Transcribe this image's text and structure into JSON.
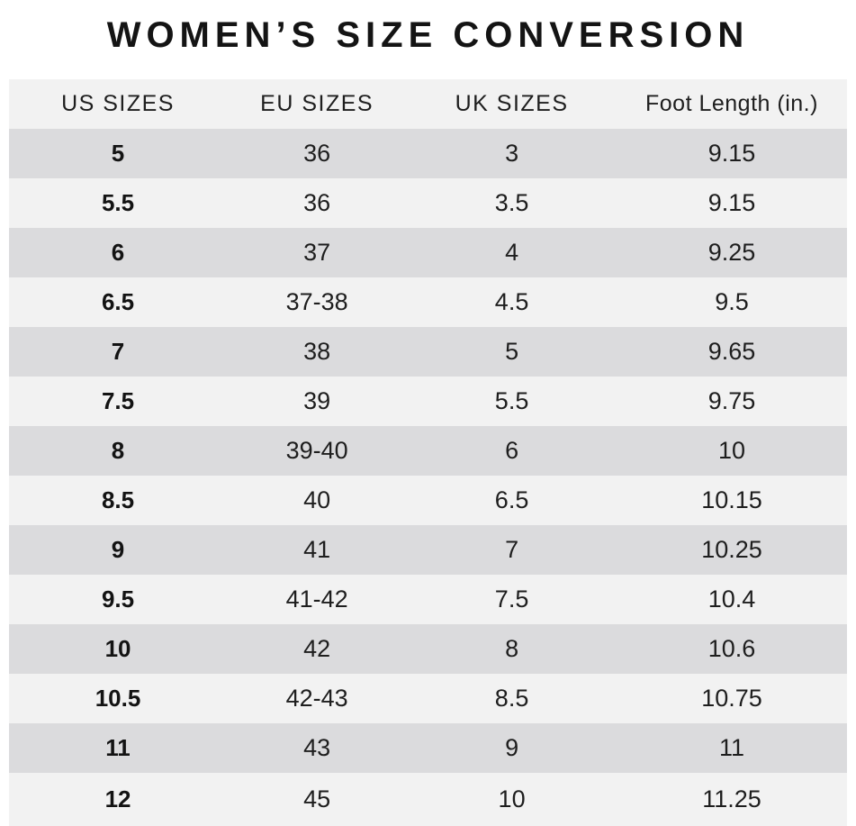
{
  "chart_data": {
    "type": "table",
    "title": "WOMEN’S SIZE CONVERSION",
    "columns": [
      "US SIZES",
      "EU SIZES",
      "UK SIZES",
      "Foot Length (in.)"
    ],
    "rows": [
      [
        "5",
        "36",
        "3",
        "9.15"
      ],
      [
        "5.5",
        "36",
        "3.5",
        "9.15"
      ],
      [
        "6",
        "37",
        "4",
        "9.25"
      ],
      [
        "6.5",
        "37-38",
        "4.5",
        "9.5"
      ],
      [
        "7",
        "38",
        "5",
        "9.65"
      ],
      [
        "7.5",
        "39",
        "5.5",
        "9.75"
      ],
      [
        "8",
        "39-40",
        "6",
        "10"
      ],
      [
        "8.5",
        "40",
        "6.5",
        "10.15"
      ],
      [
        "9",
        "41",
        "7",
        "10.25"
      ],
      [
        "9.5",
        "41-42",
        "7.5",
        "10.4"
      ],
      [
        "10",
        "42",
        "8",
        "10.6"
      ],
      [
        "10.5",
        "42-43",
        "8.5",
        "10.75"
      ],
      [
        "11",
        "43",
        "9",
        "11"
      ],
      [
        "12",
        "45",
        "10",
        "11.25"
      ]
    ],
    "layout": {
      "striped": true,
      "header_position": "top",
      "bold_column": "US SIZES"
    }
  },
  "colors": {
    "row_dark": "#dbdbdd",
    "row_light": "#f2f2f2",
    "header_bg": "#f2f2f2",
    "text": "#1e1e1e",
    "title_text": "#141414",
    "background": "#ffffff"
  }
}
